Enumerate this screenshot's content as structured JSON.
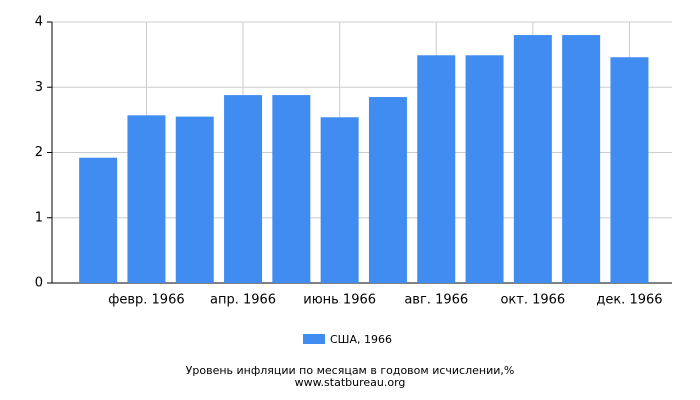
{
  "chart_data": {
    "type": "bar",
    "categories": [
      null,
      "февр. 1966",
      null,
      "апр. 1966",
      null,
      "июнь 1966",
      null,
      "авг. 1966",
      null,
      "окт. 1966",
      null,
      "дек. 1966"
    ],
    "series": [
      {
        "name": "США, 1966",
        "color": "#418cf0",
        "values": [
          1.92,
          2.57,
          2.55,
          2.88,
          2.88,
          2.54,
          2.85,
          3.49,
          3.49,
          3.8,
          3.8,
          3.46
        ]
      }
    ],
    "ylim": [
      0,
      4
    ],
    "yticks": [
      0,
      1,
      2,
      3,
      4
    ],
    "grid": true,
    "title": "Уровень инфляции по месяцам в годовом исчислении,%",
    "source": "www.statbureau.org"
  }
}
